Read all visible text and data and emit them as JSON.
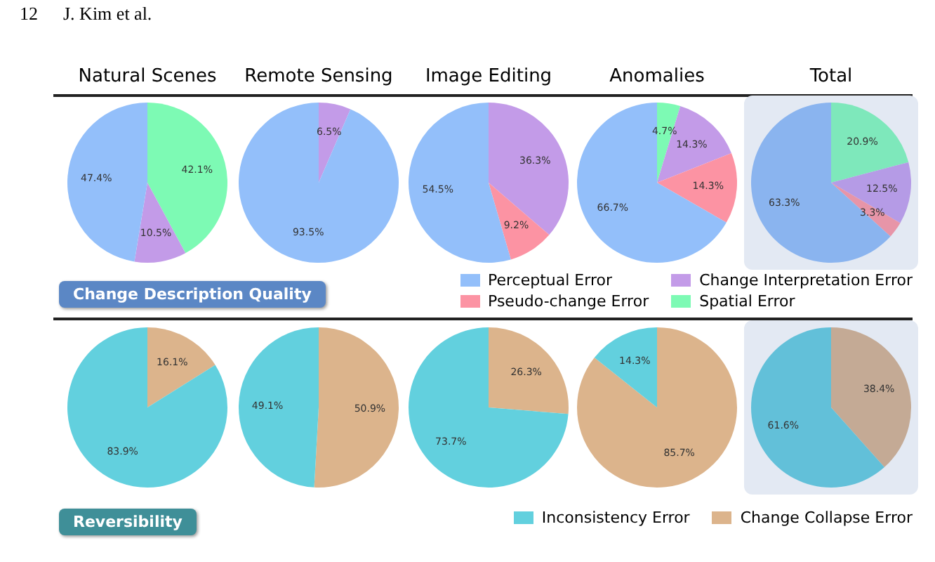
{
  "chart_data": [
    {
      "type": "pie",
      "title": "Natural Scenes",
      "categories": [
        null,
        null,
        null,
        null
      ],
      "values": [
        42.1,
        10.5,
        0,
        47.4
      ],
      "value_labels": [
        "42.1%",
        "10.5%",
        null,
        "47.4%"
      ],
      "colors": [
        "#7dfab4",
        "#c39be8",
        "#fc93a3",
        "#93bffa"
      ],
      "annotations": [
        "12",
        "J. Kim et al.",
        "Change Description Quality"
      ]
    },
    {
      "type": "pie",
      "title": "Remote Sensing",
      "categories": [
        null,
        null,
        null,
        null
      ],
      "values": [
        0,
        6.5,
        0,
        93.5
      ],
      "value_labels": [
        null,
        "6.5%",
        null,
        "93.5%"
      ],
      "colors": [
        "#7dfab4",
        "#c39be8",
        "#fc93a3",
        "#93bffa"
      ]
    },
    {
      "type": "pie",
      "title": "Image Editing",
      "categories": [
        null,
        null,
        null,
        null
      ],
      "values": [
        0,
        36.3,
        9.2,
        54.5
      ],
      "value_labels": [
        null,
        "36.3%",
        "9.2%",
        "54.5%"
      ],
      "colors": [
        "#7dfab4",
        "#c39be8",
        "#fc93a3",
        "#93bffa"
      ]
    },
    {
      "type": "pie",
      "title": "Anomalies",
      "categories": [
        "Spatial Error",
        "Change Interpretation Error",
        "Pseudo-change Error",
        "Perceptual Error"
      ],
      "values": [
        4.7,
        14.3,
        14.3,
        66.7
      ],
      "value_labels": [
        "4.7%",
        "14.3%",
        "14.3%",
        "66.7%"
      ],
      "colors": [
        "#7dfab4",
        "#c39be8",
        "#fc93a3",
        "#93bffa"
      ],
      "legend": "bottom right"
    },
    {
      "type": "pie",
      "title": "Total",
      "categories": [
        null,
        null,
        null,
        null
      ],
      "values": [
        20.9,
        12.5,
        3.3,
        63.3
      ],
      "value_labels": [
        "20.9%",
        "12.5%",
        "3.3%",
        "63.3%"
      ],
      "colors": [
        "#7ee8bb",
        "#b59be6",
        "#e795a8",
        "#8ab4ef"
      ]
    },
    {
      "type": "pie",
      "categories": [
        null,
        null
      ],
      "values": [
        16.1,
        83.9
      ],
      "value_labels": [
        "16.1%",
        "83.9%"
      ],
      "colors": [
        "#dcb48c",
        "#62d0de"
      ],
      "annotations": [
        "Reversibility"
      ]
    },
    {
      "type": "pie",
      "categories": [
        null,
        null
      ],
      "values": [
        50.9,
        49.1
      ],
      "value_labels": [
        "50.9%",
        "49.1%"
      ],
      "colors": [
        "#dcb48c",
        "#62d0de"
      ]
    },
    {
      "type": "pie",
      "categories": [
        null,
        null
      ],
      "values": [
        26.3,
        73.7
      ],
      "value_labels": [
        "26.3%",
        "73.7%"
      ],
      "colors": [
        "#dcb48c",
        "#62d0de"
      ]
    },
    {
      "type": "pie",
      "categories": [
        "Change Collapse Error",
        "Inconsistency Error"
      ],
      "values": [
        85.7,
        14.3
      ],
      "value_labels": [
        "85.7%",
        "14.3%"
      ],
      "colors": [
        "#dcb48c",
        "#62d0de"
      ],
      "legend": "bottom right"
    },
    {
      "type": "pie",
      "categories": [
        null,
        null
      ],
      "values": [
        38.4,
        61.6
      ],
      "value_labels": [
        "38.4%",
        "61.6%"
      ],
      "colors": [
        "#c4aa95",
        "#62c0d9"
      ]
    }
  ]
}
